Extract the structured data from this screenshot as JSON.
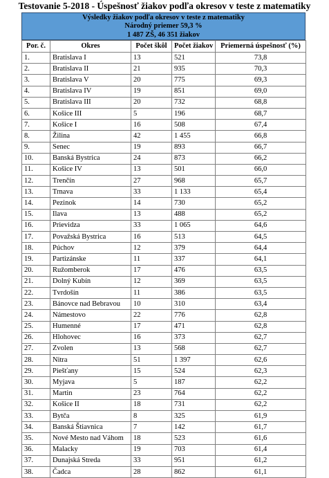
{
  "title": "Testovanie 5-2018 - Úspešnosť žiakov podľa okresov v teste z matematiky",
  "banner": {
    "line1": "Výsledky žiakov podľa okresov v teste z matematiky",
    "line2": "Národný priemer 59,3 %",
    "line3": "1 487 ZŠ, 46 351 žiakov"
  },
  "colors": {
    "banner_bg": "#5b9bd5"
  },
  "table": {
    "headers": [
      "Por. č.",
      "Okres",
      "Počet škôl",
      "Počet žiakov",
      "Priemerná úspešnosť (%)"
    ],
    "rows": [
      [
        "1.",
        "Bratislava I",
        "13",
        "521",
        "73,8"
      ],
      [
        "2.",
        "Bratislava II",
        "21",
        "935",
        "70,3"
      ],
      [
        "3.",
        "Bratislava V",
        "20",
        "775",
        "69,3"
      ],
      [
        "4.",
        "Bratislava IV",
        "19",
        "851",
        "69,0"
      ],
      [
        "5.",
        "Bratislava III",
        "20",
        "732",
        "68,8"
      ],
      [
        "6.",
        "Košice III",
        "5",
        "196",
        "68,7"
      ],
      [
        "7.",
        "Košice I",
        "16",
        "508",
        "67,4"
      ],
      [
        "8.",
        "Žilina",
        "42",
        "1 455",
        "66,8"
      ],
      [
        "9.",
        "Senec",
        "19",
        "893",
        "66,7"
      ],
      [
        "10.",
        "Banská Bystrica",
        "24",
        "873",
        "66,2"
      ],
      [
        "11.",
        "Košice IV",
        "13",
        "501",
        "66,0"
      ],
      [
        "12.",
        "Trenčín",
        "27",
        "968",
        "65,7"
      ],
      [
        "13.",
        "Trnava",
        "33",
        "1 133",
        "65,4"
      ],
      [
        "14.",
        "Pezinok",
        "14",
        "730",
        "65,2"
      ],
      [
        "15.",
        "Ilava",
        "13",
        "488",
        "65,2"
      ],
      [
        "16.",
        "Prievidza",
        "33",
        "1 065",
        "64,6"
      ],
      [
        "17.",
        "Považská Bystrica",
        "16",
        "513",
        "64,5"
      ],
      [
        "18.",
        "Púchov",
        "12",
        "379",
        "64,4"
      ],
      [
        "19.",
        "Partizánske",
        "11",
        "337",
        "64,1"
      ],
      [
        "20.",
        "Ružomberok",
        "17",
        "476",
        "63,5"
      ],
      [
        "21.",
        "Dolný Kubín",
        "12",
        "369",
        "63,5"
      ],
      [
        "22.",
        "Tvrdošín",
        "11",
        "386",
        "63,5"
      ],
      [
        "23.",
        "Bánovce nad Bebravou",
        "10",
        "310",
        "63,4"
      ],
      [
        "24.",
        "Námestovo",
        "22",
        "776",
        "62,8"
      ],
      [
        "25.",
        "Humenné",
        "17",
        "471",
        "62,8"
      ],
      [
        "26.",
        "Hlohovec",
        "16",
        "373",
        "62,7"
      ],
      [
        "27.",
        "Zvolen",
        "13",
        "568",
        "62,7"
      ],
      [
        "28.",
        "Nitra",
        "51",
        "1 397",
        "62,6"
      ],
      [
        "29.",
        "Piešťany",
        "15",
        "524",
        "62,3"
      ],
      [
        "30.",
        "Myjava",
        "5",
        "187",
        "62,2"
      ],
      [
        "31.",
        "Martin",
        "23",
        "764",
        "62,2"
      ],
      [
        "32.",
        "Košice II",
        "18",
        "731",
        "62,2"
      ],
      [
        "33.",
        "Bytča",
        "8",
        "325",
        "61,9"
      ],
      [
        "34.",
        "Banská Štiavnica",
        "7",
        "142",
        "61,7"
      ],
      [
        "35.",
        "Nové Mesto nad Váhom",
        "18",
        "523",
        "61,6"
      ],
      [
        "36.",
        "Malacky",
        "19",
        "703",
        "61,4"
      ],
      [
        "37.",
        "Dunajská Streda",
        "33",
        "951",
        "61,2"
      ],
      [
        "38.",
        "Čadca",
        "28",
        "862",
        "61,1"
      ]
    ]
  }
}
